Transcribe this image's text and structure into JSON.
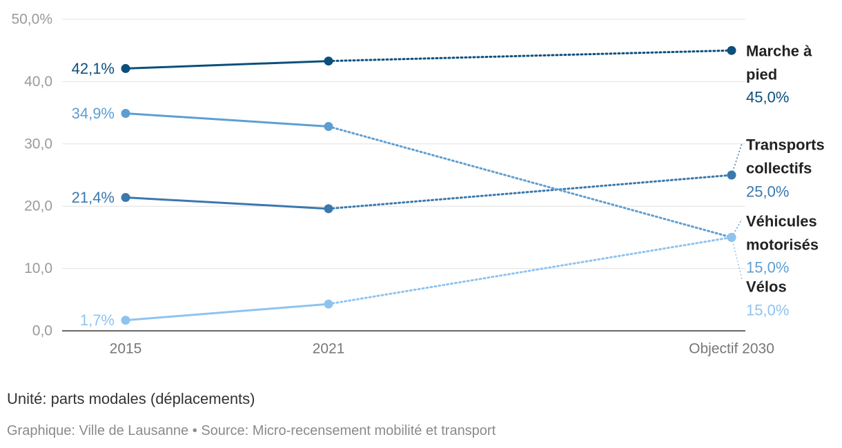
{
  "chart_data": {
    "type": "line",
    "categories": [
      "2015",
      "2021",
      "Objectif 2030"
    ],
    "y_ticks": [
      "50,0%",
      "40,0",
      "30,0",
      "20,0",
      "10,0",
      "0,0"
    ],
    "ylim": [
      0,
      50
    ],
    "grid": true,
    "series": [
      {
        "name": "Marche à pied",
        "name_lines": [
          "Marche à",
          "pied"
        ],
        "values": [
          42.1,
          43.3,
          45.0
        ],
        "start_label": "42,1%",
        "end_label": "45,0%",
        "color": "#0b4f7c"
      },
      {
        "name": "Transports collectifs",
        "name_lines": [
          "Transports",
          "collectifs"
        ],
        "values": [
          21.4,
          19.6,
          25.0
        ],
        "start_label": "21,4%",
        "end_label": "25,0%",
        "color": "#3a78ad"
      },
      {
        "name": "Véhicules motorisés",
        "name_lines": [
          "Véhicules",
          "motorisés"
        ],
        "values": [
          34.9,
          32.8,
          15.0
        ],
        "start_label": "34,9%",
        "end_label": "15,0%",
        "color": "#5d9ed2"
      },
      {
        "name": "Vélos",
        "name_lines": [
          "Vélos"
        ],
        "values": [
          1.7,
          4.3,
          15.0
        ],
        "start_label": "1,7%",
        "end_label": "15,0%",
        "color": "#8ec3f0"
      }
    ]
  },
  "footer": {
    "unit": "Unité: parts modales (déplacements)",
    "credit": "Graphique: Ville de Lausanne",
    "separator": "•",
    "source": "Source: Micro-recensement mobilité et transport"
  }
}
